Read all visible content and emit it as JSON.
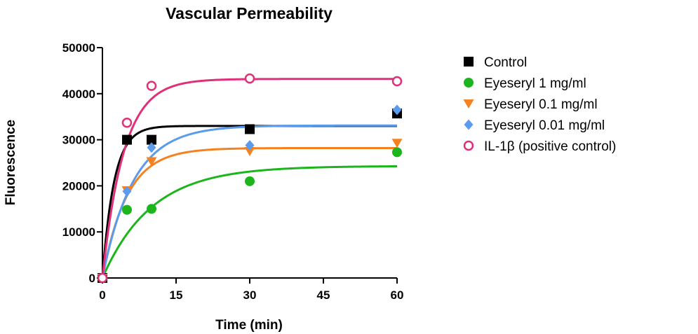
{
  "chart_data": {
    "type": "scatter",
    "title": "Vascular Permeability",
    "xlabel": "Time (min)",
    "ylabel": "Fluorescence",
    "xlim": [
      0,
      60
    ],
    "ylim": [
      0,
      50000
    ],
    "xticks": [
      0,
      15,
      30,
      45,
      60
    ],
    "yticks": [
      0,
      10000,
      20000,
      30000,
      40000,
      50000
    ],
    "xtick_labels": [
      "0",
      "15",
      "30",
      "45",
      "60"
    ],
    "ytick_labels": [
      "0",
      "10000",
      "20000",
      "30000",
      "40000",
      "50000"
    ],
    "grid": false,
    "legend_position": "right",
    "x": [
      0,
      5,
      10,
      30,
      60
    ],
    "series": [
      {
        "name": "Control",
        "marker": "square",
        "color": "#000000",
        "values": [
          0,
          30000,
          30000,
          32300,
          35700
        ],
        "fit_plateau": 33000,
        "fit_rate": 0.42
      },
      {
        "name": "Eyeseryl 1 mg/ml",
        "marker": "circle",
        "color": "#1cb51c",
        "values": [
          0,
          14800,
          15000,
          21000,
          27300
        ],
        "fit_plateau": 24300,
        "fit_rate": 0.1
      },
      {
        "name": "Eyeseryl 0.1 mg/ml",
        "marker": "triangle-down",
        "color": "#f58220",
        "values": [
          0,
          19000,
          25300,
          27500,
          29300
        ],
        "fit_plateau": 28200,
        "fit_rate": 0.2
      },
      {
        "name": "Eyeseryl 0.01 mg/ml",
        "marker": "diamond",
        "color": "#5a9bed",
        "values": [
          0,
          18800,
          28300,
          28800,
          36500
        ],
        "fit_plateau": 33100,
        "fit_rate": 0.16
      },
      {
        "name": "IL-1β (positive control)",
        "marker": "open-circle",
        "color": "#e0307a",
        "values": [
          0,
          33700,
          41700,
          43300,
          42700
        ],
        "fit_plateau": 43200,
        "fit_rate": 0.23
      }
    ]
  }
}
